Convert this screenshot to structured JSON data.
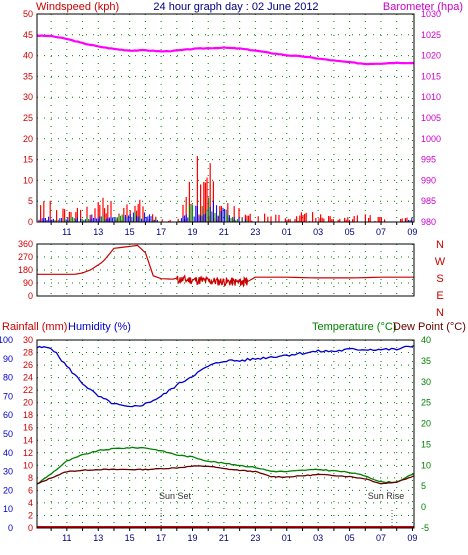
{
  "page": {
    "title": "24 hour graph day : 02 June 2012"
  },
  "colors": {
    "wind": "#ff0000",
    "gust_blue": "#0000ff",
    "wind_green": "#008000",
    "barometer": "#ff00ff",
    "direction": "#cc0000",
    "humidity": "#0000cc",
    "temperature": "#008000",
    "dewpoint": "#660000",
    "rainfall": "#cc0000",
    "left_axis_wind": "#cc0000",
    "right_axis_baro": "#cc00cc",
    "grid": "#008000"
  },
  "x_tick_labels": [
    "11",
    "13",
    "15",
    "17",
    "19",
    "21",
    "23",
    "01",
    "03",
    "05",
    "07",
    "09"
  ],
  "chart_data": [
    {
      "type": "line",
      "panel": "wind_barometer",
      "labels": {
        "left": "Windspeed (kph)",
        "right": "Barometer (hpa)"
      },
      "left_axis": {
        "ticks": [
          0,
          5,
          10,
          15,
          20,
          25,
          30,
          35,
          40,
          45,
          50
        ],
        "ylim": [
          0,
          50
        ]
      },
      "right_axis": {
        "ticks": [
          980,
          985,
          990,
          995,
          1000,
          1005,
          1010,
          1015,
          1020,
          1025,
          1030
        ],
        "ylim": [
          980,
          1030
        ]
      },
      "x_hours": [
        9.1,
        10,
        11,
        12,
        13,
        14,
        15,
        16,
        17,
        18,
        19,
        20,
        21,
        22,
        23,
        24,
        25,
        26,
        27,
        28,
        29,
        30,
        31,
        32,
        33.1
      ],
      "series": [
        {
          "values": [
            1024.8,
            1024.7,
            1024.0,
            1023.0,
            1022.2,
            1021.6,
            1021.2,
            1021.3,
            1021.0,
            1021.2,
            1021.6,
            1021.8,
            1021.9,
            1021.7,
            1021.2,
            1020.6,
            1020.1,
            1019.8,
            1019.3,
            1018.8,
            1018.4,
            1018.0,
            1018.1,
            1018.3,
            1018.2
          ]
        },
        {
          "values": [
            5,
            4,
            4,
            3,
            5,
            4,
            5,
            5,
            1,
            0,
            12,
            14,
            8,
            3,
            2,
            2,
            1,
            2,
            2,
            1,
            1,
            2,
            1,
            0,
            3
          ]
        },
        {
          "values": [
            1,
            1,
            1,
            1,
            2,
            1,
            2,
            2,
            0,
            0,
            4,
            5,
            3,
            1,
            0,
            0,
            0,
            0,
            0,
            0,
            0,
            0,
            0,
            0,
            1
          ]
        }
      ]
    },
    {
      "type": "line",
      "panel": "wind_direction",
      "labels": {
        "right": [
          "N",
          "W",
          "S",
          "E",
          "N"
        ]
      },
      "left_axis": {
        "ticks": [
          0,
          90,
          180,
          270,
          360
        ],
        "ylim": [
          0,
          360
        ]
      },
      "x_hours": [
        9.1,
        11.5,
        12.0,
        12.5,
        13.2,
        13.4,
        14.0,
        15.5,
        16.0,
        16.5,
        17.0,
        18.0,
        19.0,
        20.0,
        21.0,
        22.0,
        22.5,
        23.0,
        25.0,
        27.0,
        29.0,
        31.0,
        33.1
      ],
      "series": [
        {
          "values": [
            150,
            150,
            160,
            180,
            230,
            250,
            330,
            350,
            300,
            140,
            120,
            115,
            110,
            105,
            100,
            95,
            100,
            130,
            130,
            125,
            125,
            130,
            130
          ]
        }
      ]
    },
    {
      "type": "line",
      "panel": "temperature_humidity",
      "labels": {
        "left": [
          "Rainfall (mm)",
          "Humidity (%)"
        ],
        "right": [
          "Temperature (°C)",
          "Dew Point (°C)"
        ],
        "annotations": [
          "Sun Set",
          "Sun Rise"
        ]
      },
      "rain_axis": {
        "ticks": [
          0,
          2,
          4,
          6,
          8,
          10,
          12,
          14,
          16,
          18,
          20,
          22,
          24,
          26,
          28,
          30
        ],
        "ylim": [
          0,
          30
        ]
      },
      "humidity_axis": {
        "ticks": [
          0,
          10,
          20,
          30,
          40,
          50,
          60,
          70,
          80,
          90,
          100
        ],
        "ylim": [
          0,
          100
        ]
      },
      "temp_axis": {
        "ticks": [
          -5,
          0,
          5,
          10,
          15,
          20,
          25,
          30,
          35,
          40
        ],
        "ylim": [
          -5,
          40
        ]
      },
      "x_hours": [
        9.1,
        10,
        11,
        12,
        13,
        14,
        15,
        16,
        17,
        18,
        19,
        20,
        21,
        22,
        23,
        24,
        25,
        26,
        27,
        28,
        29,
        30,
        31,
        32,
        33.1
      ],
      "series": [
        {
          "values": [
            96,
            96,
            86,
            77,
            70,
            66,
            64,
            66,
            70,
            76,
            81,
            86,
            89,
            89,
            90,
            91,
            92,
            93,
            94,
            94,
            95,
            95,
            95,
            95,
            97
          ]
        },
        {
          "values": [
            5.5,
            8,
            11,
            12.5,
            13.5,
            14,
            14.2,
            14.2,
            13.5,
            12.5,
            12,
            11,
            10.5,
            10,
            9.5,
            8.6,
            8.5,
            8.8,
            9,
            8.7,
            8.3,
            7.5,
            6,
            6,
            8
          ]
        },
        {
          "values": [
            5.5,
            7,
            8.5,
            8.8,
            9,
            9,
            9,
            9,
            9.2,
            9.4,
            9.8,
            9.8,
            9.2,
            8.8,
            8.5,
            7.3,
            7.2,
            7.5,
            7.8,
            7.6,
            7.3,
            6.8,
            5.6,
            6,
            7.5
          ]
        },
        {
          "values": [
            0,
            0,
            0,
            0,
            0,
            0,
            0,
            0,
            0,
            0,
            0,
            0,
            0,
            0,
            0,
            0,
            0,
            0,
            0,
            0,
            0,
            0,
            0,
            0,
            0
          ]
        }
      ],
      "sunset_hour": 17,
      "sunrise_hour": 31.7
    }
  ]
}
